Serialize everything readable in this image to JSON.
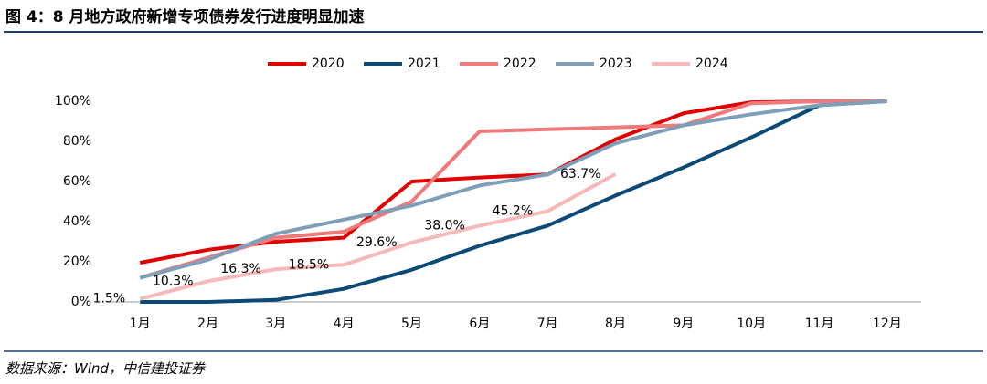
{
  "chart_data": {
    "type": "line",
    "title": "图 4：8 月地方政府新增专项债券发行进度明显加速",
    "source": "数据来源：Wind，中信建投证券",
    "categories": [
      "1月",
      "2月",
      "3月",
      "4月",
      "5月",
      "6月",
      "7月",
      "8月",
      "9月",
      "10月",
      "11月",
      "12月"
    ],
    "series": [
      {
        "name": "2020",
        "color": "#e00000",
        "values": [
          19.5,
          26,
          30,
          32,
          60,
          62,
          63.5,
          81,
          94,
          99.5,
          100,
          100
        ]
      },
      {
        "name": "2021",
        "color": "#0b4a75",
        "values": [
          0,
          0,
          1,
          6.5,
          16,
          28,
          38,
          53,
          67,
          82,
          98,
          100
        ]
      },
      {
        "name": "2022",
        "color": "#f07a7a",
        "values": [
          12,
          22,
          32,
          35,
          50,
          85,
          86,
          87,
          88,
          99,
          100,
          100
        ]
      },
      {
        "name": "2023",
        "color": "#7f9fb8",
        "values": [
          12,
          21,
          34,
          41,
          48,
          58,
          63.5,
          79,
          88,
          93.5,
          98,
          100
        ]
      },
      {
        "name": "2024",
        "color": "#f6b8b8",
        "values": [
          1.5,
          10.3,
          16.3,
          18.5,
          29.6,
          38.0,
          45.2,
          63.7,
          null,
          null,
          null,
          null
        ],
        "value_labels": [
          "1.5%",
          "10.3%",
          "16.3%",
          "18.5%",
          "29.6%",
          "38.0%",
          "45.2%",
          "63.7%",
          null,
          null,
          null,
          null
        ]
      }
    ],
    "ylim": [
      0,
      100
    ],
    "yticks": [
      {
        "value": 0,
        "label": "0%"
      },
      {
        "value": 20,
        "label": "20%"
      },
      {
        "value": 40,
        "label": "40%"
      },
      {
        "value": 60,
        "label": "60%"
      },
      {
        "value": 80,
        "label": "80%"
      },
      {
        "value": 100,
        "label": "100%"
      }
    ],
    "legend": "top"
  }
}
